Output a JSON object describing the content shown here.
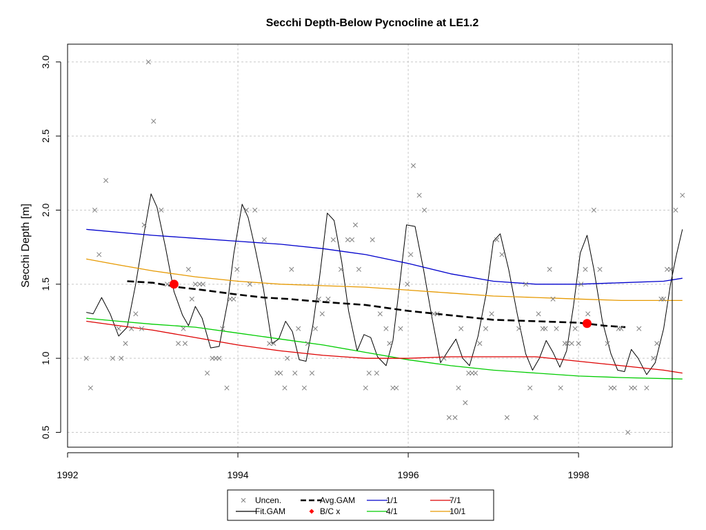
{
  "chart_data": {
    "type": "line",
    "title": "Secchi Depth-Below Pycnocline at LE1.2",
    "xlabel": "",
    "ylabel": "Secchi Depth [m]",
    "xlim": [
      1992.0,
      1999.1
    ],
    "ylim": [
      0.4,
      3.12
    ],
    "x_ticks": [
      1992,
      1994,
      1996,
      1998
    ],
    "x_tick_labels": [
      "1992",
      "1994",
      "1996",
      "1998"
    ],
    "y_ticks": [
      0.5,
      1.0,
      1.5,
      2.0,
      2.5,
      3.0
    ],
    "y_tick_labels": [
      "0.5",
      "1.0",
      "1.5",
      "2.0",
      "2.5",
      "3.0"
    ],
    "grid": true,
    "legend_position": "bottom-center",
    "legend": [
      {
        "key": "uncen",
        "label": "Uncen."
      },
      {
        "key": "fit",
        "label": "Fit.GAM"
      },
      {
        "key": "avg",
        "label": "Avg.GAM"
      },
      {
        "key": "bcx",
        "label": "B/C x"
      },
      {
        "key": "s11",
        "label": "1/1"
      },
      {
        "key": "s41",
        "label": "4/1"
      },
      {
        "key": "s71",
        "label": "7/1"
      },
      {
        "key": "s101",
        "label": "10/1"
      }
    ],
    "colors": {
      "uncen": "#7f7f7f",
      "fit": "#000000",
      "avg": "#000000",
      "bcx": "#ff0000",
      "s11": "#0000cc",
      "s41": "#00cc00",
      "s71": "#dd0000",
      "s101": "#e69900",
      "grid": "#c8c8c8"
    },
    "uncensored_points": [
      [
        1992.22,
        1.0
      ],
      [
        1992.27,
        0.8
      ],
      [
        1992.32,
        2.0
      ],
      [
        1992.37,
        1.7
      ],
      [
        1992.45,
        2.2
      ],
      [
        1992.53,
        1.0
      ],
      [
        1992.6,
        1.2
      ],
      [
        1992.63,
        1.0
      ],
      [
        1992.68,
        1.1
      ],
      [
        1992.75,
        1.2
      ],
      [
        1992.8,
        1.3
      ],
      [
        1992.87,
        1.2
      ],
      [
        1992.9,
        1.9
      ],
      [
        1992.95,
        3.0
      ],
      [
        1993.01,
        2.6
      ],
      [
        1993.1,
        2.0
      ],
      [
        1993.17,
        1.5
      ],
      [
        1993.3,
        1.1
      ],
      [
        1993.36,
        1.2
      ],
      [
        1993.38,
        1.1
      ],
      [
        1993.42,
        1.6
      ],
      [
        1993.46,
        1.4
      ],
      [
        1993.5,
        1.5
      ],
      [
        1993.55,
        1.5
      ],
      [
        1993.59,
        1.5
      ],
      [
        1993.64,
        0.9
      ],
      [
        1993.7,
        1.0
      ],
      [
        1993.74,
        1.0
      ],
      [
        1993.78,
        1.0
      ],
      [
        1993.82,
        1.2
      ],
      [
        1993.87,
        0.8
      ],
      [
        1993.91,
        1.4
      ],
      [
        1993.95,
        1.4
      ],
      [
        1993.99,
        1.6
      ],
      [
        1994.1,
        2.0
      ],
      [
        1994.14,
        1.5
      ],
      [
        1994.2,
        2.0
      ],
      [
        1994.31,
        1.8
      ],
      [
        1994.37,
        1.1
      ],
      [
        1994.42,
        1.1
      ],
      [
        1994.46,
        0.9
      ],
      [
        1994.5,
        0.9
      ],
      [
        1994.55,
        0.8
      ],
      [
        1994.58,
        1.0
      ],
      [
        1994.63,
        1.6
      ],
      [
        1994.67,
        0.9
      ],
      [
        1994.71,
        1.2
      ],
      [
        1994.78,
        0.8
      ],
      [
        1994.82,
        1.1
      ],
      [
        1994.87,
        0.9
      ],
      [
        1994.91,
        1.2
      ],
      [
        1994.95,
        1.4
      ],
      [
        1994.99,
        1.3
      ],
      [
        1995.06,
        1.4
      ],
      [
        1995.12,
        1.8
      ],
      [
        1995.21,
        1.6
      ],
      [
        1995.29,
        1.8
      ],
      [
        1995.34,
        1.8
      ],
      [
        1995.38,
        1.9
      ],
      [
        1995.42,
        1.6
      ],
      [
        1995.5,
        0.8
      ],
      [
        1995.54,
        0.9
      ],
      [
        1995.58,
        1.8
      ],
      [
        1995.63,
        0.9
      ],
      [
        1995.67,
        1.3
      ],
      [
        1995.74,
        1.2
      ],
      [
        1995.78,
        1.1
      ],
      [
        1995.82,
        0.8
      ],
      [
        1995.86,
        0.8
      ],
      [
        1995.91,
        1.2
      ],
      [
        1995.99,
        1.5
      ],
      [
        1996.03,
        1.7
      ],
      [
        1996.06,
        2.3
      ],
      [
        1996.13,
        2.1
      ],
      [
        1996.19,
        2.0
      ],
      [
        1996.3,
        1.3
      ],
      [
        1996.34,
        1.3
      ],
      [
        1996.42,
        1.0
      ],
      [
        1996.48,
        0.6
      ],
      [
        1996.55,
        0.6
      ],
      [
        1996.59,
        0.8
      ],
      [
        1996.62,
        1.2
      ],
      [
        1996.67,
        0.7
      ],
      [
        1996.71,
        0.9
      ],
      [
        1996.75,
        0.9
      ],
      [
        1996.79,
        0.9
      ],
      [
        1996.84,
        1.1
      ],
      [
        1996.91,
        1.2
      ],
      [
        1996.98,
        1.3
      ],
      [
        1997.04,
        1.8
      ],
      [
        1997.1,
        1.7
      ],
      [
        1997.16,
        0.6
      ],
      [
        1997.3,
        1.2
      ],
      [
        1997.38,
        1.5
      ],
      [
        1997.43,
        0.8
      ],
      [
        1997.5,
        0.6
      ],
      [
        1997.53,
        1.3
      ],
      [
        1997.58,
        1.2
      ],
      [
        1997.61,
        1.2
      ],
      [
        1997.66,
        1.6
      ],
      [
        1997.7,
        1.4
      ],
      [
        1997.74,
        1.2
      ],
      [
        1997.79,
        0.8
      ],
      [
        1997.84,
        1.1
      ],
      [
        1997.87,
        1.1
      ],
      [
        1997.92,
        1.1
      ],
      [
        1997.96,
        1.2
      ],
      [
        1998.0,
        1.1
      ],
      [
        1998.03,
        1.5
      ],
      [
        1998.08,
        1.6
      ],
      [
        1998.11,
        1.3
      ],
      [
        1998.18,
        2.0
      ],
      [
        1998.25,
        1.6
      ],
      [
        1998.34,
        1.1
      ],
      [
        1998.38,
        0.8
      ],
      [
        1998.42,
        0.8
      ],
      [
        1998.47,
        1.2
      ],
      [
        1998.5,
        1.2
      ],
      [
        1998.58,
        0.5
      ],
      [
        1998.62,
        0.8
      ],
      [
        1998.66,
        0.8
      ],
      [
        1998.71,
        1.2
      ],
      [
        1998.8,
        0.8
      ],
      [
        1998.88,
        1.0
      ],
      [
        1998.92,
        1.1
      ],
      [
        1998.97,
        1.4
      ],
      [
        1999.0,
        1.4
      ],
      [
        1999.04,
        1.6
      ],
      [
        1999.08,
        1.6
      ],
      [
        1999.14,
        2.0
      ],
      [
        1999.22,
        2.1
      ]
    ],
    "series": [
      {
        "key": "fit",
        "name": "Fit.GAM",
        "style": "solid-thin",
        "points": [
          [
            1992.22,
            1.31
          ],
          [
            1992.3,
            1.3
          ],
          [
            1992.4,
            1.41
          ],
          [
            1992.5,
            1.3
          ],
          [
            1992.6,
            1.15
          ],
          [
            1992.7,
            1.21
          ],
          [
            1992.8,
            1.5
          ],
          [
            1992.9,
            1.85
          ],
          [
            1992.98,
            2.11
          ],
          [
            1993.05,
            2.02
          ],
          [
            1993.15,
            1.75
          ],
          [
            1993.25,
            1.45
          ],
          [
            1993.35,
            1.29
          ],
          [
            1993.42,
            1.22
          ],
          [
            1993.5,
            1.35
          ],
          [
            1993.58,
            1.27
          ],
          [
            1993.68,
            1.07
          ],
          [
            1993.78,
            1.08
          ],
          [
            1993.88,
            1.38
          ],
          [
            1993.95,
            1.7
          ],
          [
            1994.05,
            2.04
          ],
          [
            1994.12,
            1.95
          ],
          [
            1994.2,
            1.75
          ],
          [
            1994.3,
            1.47
          ],
          [
            1994.4,
            1.1
          ],
          [
            1994.48,
            1.13
          ],
          [
            1994.56,
            1.25
          ],
          [
            1994.64,
            1.18
          ],
          [
            1994.72,
            0.99
          ],
          [
            1994.8,
            0.98
          ],
          [
            1994.88,
            1.22
          ],
          [
            1994.96,
            1.55
          ],
          [
            1995.05,
            1.98
          ],
          [
            1995.13,
            1.93
          ],
          [
            1995.22,
            1.65
          ],
          [
            1995.3,
            1.32
          ],
          [
            1995.4,
            1.05
          ],
          [
            1995.48,
            1.16
          ],
          [
            1995.56,
            1.14
          ],
          [
            1995.64,
            1.01
          ],
          [
            1995.74,
            0.95
          ],
          [
            1995.82,
            1.12
          ],
          [
            1995.9,
            1.5
          ],
          [
            1995.98,
            1.9
          ],
          [
            1996.08,
            1.89
          ],
          [
            1996.18,
            1.6
          ],
          [
            1996.28,
            1.27
          ],
          [
            1996.38,
            0.97
          ],
          [
            1996.48,
            1.06
          ],
          [
            1996.56,
            1.13
          ],
          [
            1996.64,
            1.0
          ],
          [
            1996.72,
            0.95
          ],
          [
            1996.82,
            1.15
          ],
          [
            1996.92,
            1.45
          ],
          [
            1997.0,
            1.79
          ],
          [
            1997.08,
            1.84
          ],
          [
            1997.18,
            1.6
          ],
          [
            1997.28,
            1.3
          ],
          [
            1997.38,
            1.03
          ],
          [
            1997.46,
            0.92
          ],
          [
            1997.54,
            1.0
          ],
          [
            1997.62,
            1.12
          ],
          [
            1997.7,
            1.04
          ],
          [
            1997.78,
            0.94
          ],
          [
            1997.86,
            1.05
          ],
          [
            1997.94,
            1.35
          ],
          [
            1998.02,
            1.71
          ],
          [
            1998.1,
            1.83
          ],
          [
            1998.18,
            1.6
          ],
          [
            1998.28,
            1.25
          ],
          [
            1998.38,
            1.03
          ],
          [
            1998.46,
            0.92
          ],
          [
            1998.54,
            0.91
          ],
          [
            1998.62,
            1.06
          ],
          [
            1998.7,
            1.0
          ],
          [
            1998.8,
            0.89
          ],
          [
            1998.9,
            0.97
          ],
          [
            1999.0,
            1.2
          ],
          [
            1999.08,
            1.5
          ],
          [
            1999.15,
            1.7
          ],
          [
            1999.22,
            1.87
          ]
        ]
      },
      {
        "key": "avg",
        "name": "Avg.GAM",
        "style": "dashed-thick",
        "points": [
          [
            1992.7,
            1.52
          ],
          [
            1993.0,
            1.51
          ],
          [
            1993.3,
            1.48
          ],
          [
            1993.6,
            1.46
          ],
          [
            1994.0,
            1.43
          ],
          [
            1994.3,
            1.41
          ],
          [
            1994.6,
            1.4
          ],
          [
            1995.0,
            1.38
          ],
          [
            1995.5,
            1.36
          ],
          [
            1996.0,
            1.32
          ],
          [
            1996.5,
            1.29
          ],
          [
            1997.0,
            1.26
          ],
          [
            1997.5,
            1.25
          ],
          [
            1998.0,
            1.24
          ],
          [
            1998.3,
            1.22
          ],
          [
            1998.55,
            1.21
          ]
        ]
      },
      {
        "key": "s11",
        "name": "1/1",
        "style": "solid",
        "points": [
          [
            1992.22,
            1.87
          ],
          [
            1993.0,
            1.83
          ],
          [
            1993.5,
            1.81
          ],
          [
            1994.0,
            1.79
          ],
          [
            1994.5,
            1.77
          ],
          [
            1995.0,
            1.74
          ],
          [
            1995.5,
            1.7
          ],
          [
            1996.0,
            1.64
          ],
          [
            1996.5,
            1.57
          ],
          [
            1997.0,
            1.52
          ],
          [
            1997.5,
            1.5
          ],
          [
            1998.0,
            1.5
          ],
          [
            1998.5,
            1.51
          ],
          [
            1999.0,
            1.52
          ],
          [
            1999.22,
            1.54
          ]
        ]
      },
      {
        "key": "s101",
        "name": "10/1",
        "style": "solid",
        "points": [
          [
            1992.22,
            1.67
          ],
          [
            1992.6,
            1.63
          ],
          [
            1993.0,
            1.59
          ],
          [
            1993.5,
            1.55
          ],
          [
            1994.0,
            1.52
          ],
          [
            1994.5,
            1.5
          ],
          [
            1995.0,
            1.49
          ],
          [
            1995.5,
            1.48
          ],
          [
            1996.0,
            1.46
          ],
          [
            1996.5,
            1.44
          ],
          [
            1997.0,
            1.42
          ],
          [
            1997.5,
            1.41
          ],
          [
            1998.0,
            1.4
          ],
          [
            1998.5,
            1.39
          ],
          [
            1999.22,
            1.39
          ]
        ]
      },
      {
        "key": "s41",
        "name": "4/1",
        "style": "solid",
        "points": [
          [
            1992.22,
            1.27
          ],
          [
            1992.6,
            1.25
          ],
          [
            1993.0,
            1.23
          ],
          [
            1993.5,
            1.21
          ],
          [
            1994.0,
            1.17
          ],
          [
            1994.5,
            1.13
          ],
          [
            1995.0,
            1.09
          ],
          [
            1995.5,
            1.04
          ],
          [
            1996.0,
            0.99
          ],
          [
            1996.5,
            0.95
          ],
          [
            1997.0,
            0.92
          ],
          [
            1997.5,
            0.9
          ],
          [
            1998.0,
            0.88
          ],
          [
            1998.5,
            0.87
          ],
          [
            1999.22,
            0.86
          ]
        ]
      },
      {
        "key": "s71",
        "name": "7/1",
        "style": "solid",
        "points": [
          [
            1992.22,
            1.25
          ],
          [
            1992.6,
            1.22
          ],
          [
            1993.0,
            1.19
          ],
          [
            1993.5,
            1.14
          ],
          [
            1994.0,
            1.09
          ],
          [
            1994.5,
            1.05
          ],
          [
            1995.0,
            1.02
          ],
          [
            1995.5,
            1.0
          ],
          [
            1996.0,
            1.0
          ],
          [
            1996.5,
            1.01
          ],
          [
            1997.0,
            1.01
          ],
          [
            1997.5,
            1.01
          ],
          [
            1998.0,
            0.98
          ],
          [
            1998.5,
            0.95
          ],
          [
            1999.0,
            0.92
          ],
          [
            1999.22,
            0.9
          ]
        ]
      }
    ],
    "bc_points": [
      [
        1993.25,
        1.5
      ],
      [
        1998.1,
        1.235
      ]
    ]
  }
}
